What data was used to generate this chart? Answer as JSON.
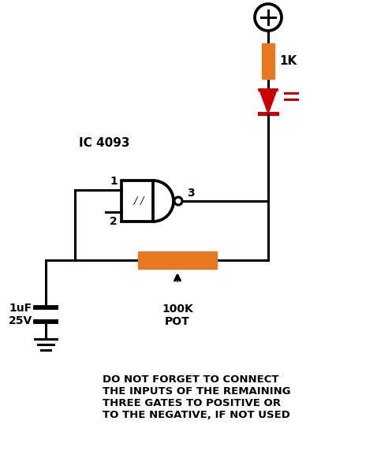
{
  "background_color": "#ffffff",
  "ic_label": "IC 4093",
  "resistor_1k_label": "1K",
  "resistor_100k_label": "100K\nPOT",
  "cap_label": "1uF\n25V",
  "pin1_label": "1",
  "pin2_label": "2",
  "pin3_label": "3",
  "note_text": "DO NOT FORGET TO CONNECT\nTHE INPUTS OF THE REMAINING\nTHREE GATES TO POSITIVE OR\nTO THE NEGATIVE, IF NOT USED",
  "orange_color": "#E87722",
  "red_color": "#CC0000",
  "black_color": "#000000",
  "line_width": 2.2
}
